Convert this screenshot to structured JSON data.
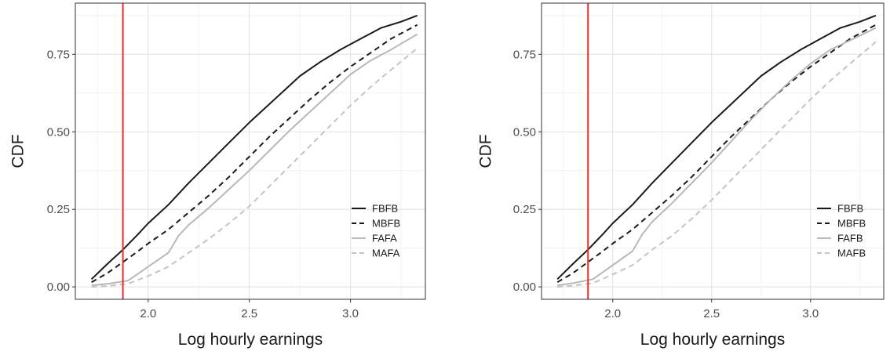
{
  "chart_data": [
    {
      "type": "line",
      "xlabel": "Log hourly earnings",
      "ylabel": "CDF",
      "xlim": [
        1.64,
        3.37
      ],
      "ylim": [
        -0.04,
        0.915
      ],
      "xticks": [
        2.0,
        2.5,
        3.0
      ],
      "xtick_labels": [
        "2.0",
        "2.5",
        "3.0"
      ],
      "yticks": [
        0.0,
        0.25,
        0.5,
        0.75
      ],
      "ytick_labels": [
        "0.00",
        "0.25",
        "0.50",
        "0.75"
      ],
      "grid": true,
      "legend_position": "bottom-right",
      "vline": {
        "x": 1.875,
        "color": "#e8302a"
      },
      "series": [
        {
          "name": "FBFB",
          "color": "#1a1a1a",
          "dash": "solid",
          "x": [
            1.72,
            1.8,
            1.875,
            1.95,
            2.0,
            2.1,
            2.2,
            2.3,
            2.4,
            2.5,
            2.6,
            2.7,
            2.75,
            2.85,
            2.95,
            3.05,
            3.15,
            3.25,
            3.33
          ],
          "y": [
            0.025,
            0.075,
            0.12,
            0.17,
            0.205,
            0.265,
            0.335,
            0.4,
            0.465,
            0.53,
            0.59,
            0.65,
            0.68,
            0.725,
            0.765,
            0.8,
            0.835,
            0.855,
            0.875
          ]
        },
        {
          "name": "MBFB",
          "color": "#1a1a1a",
          "dash": "dashed",
          "x": [
            1.72,
            1.8,
            1.875,
            1.95,
            2.0,
            2.1,
            2.2,
            2.3,
            2.4,
            2.5,
            2.6,
            2.7,
            2.8,
            2.9,
            3.0,
            3.1,
            3.2,
            3.33
          ],
          "y": [
            0.015,
            0.045,
            0.08,
            0.115,
            0.14,
            0.185,
            0.24,
            0.295,
            0.355,
            0.42,
            0.485,
            0.545,
            0.605,
            0.66,
            0.71,
            0.755,
            0.8,
            0.845
          ]
        },
        {
          "name": "FAFA",
          "color": "#b8b8b8",
          "dash": "solid",
          "x": [
            1.72,
            1.8,
            1.9,
            2.0,
            2.1,
            2.15,
            2.2,
            2.3,
            2.4,
            2.5,
            2.6,
            2.7,
            2.8,
            2.9,
            3.0,
            3.1,
            3.2,
            3.33
          ],
          "y": [
            0.005,
            0.01,
            0.02,
            0.065,
            0.11,
            0.165,
            0.2,
            0.255,
            0.315,
            0.375,
            0.44,
            0.505,
            0.565,
            0.625,
            0.685,
            0.73,
            0.765,
            0.815
          ]
        },
        {
          "name": "MAFA",
          "color": "#c4c4c4",
          "dash": "dashed",
          "x": [
            1.72,
            1.8,
            1.9,
            2.0,
            2.1,
            2.2,
            2.3,
            2.4,
            2.5,
            2.6,
            2.7,
            2.8,
            2.9,
            3.0,
            3.1,
            3.2,
            3.33
          ],
          "y": [
            0.0,
            0.003,
            0.01,
            0.035,
            0.065,
            0.11,
            0.155,
            0.205,
            0.26,
            0.325,
            0.39,
            0.455,
            0.52,
            0.585,
            0.645,
            0.7,
            0.77
          ]
        }
      ]
    },
    {
      "type": "line",
      "xlabel": "Log hourly earnings",
      "ylabel": "CDF",
      "xlim": [
        1.64,
        3.37
      ],
      "ylim": [
        -0.04,
        0.915
      ],
      "xticks": [
        2.0,
        2.5,
        3.0
      ],
      "xtick_labels": [
        "2.0",
        "2.5",
        "3.0"
      ],
      "yticks": [
        0.0,
        0.25,
        0.5,
        0.75
      ],
      "ytick_labels": [
        "0.00",
        "0.25",
        "0.50",
        "0.75"
      ],
      "grid": true,
      "legend_position": "bottom-right",
      "vline": {
        "x": 1.875,
        "color": "#e8302a"
      },
      "series": [
        {
          "name": "FBFB",
          "color": "#1a1a1a",
          "dash": "solid",
          "x": [
            1.72,
            1.8,
            1.875,
            1.95,
            2.0,
            2.1,
            2.2,
            2.3,
            2.4,
            2.5,
            2.6,
            2.7,
            2.75,
            2.85,
            2.95,
            3.05,
            3.15,
            3.25,
            3.33
          ],
          "y": [
            0.025,
            0.075,
            0.12,
            0.17,
            0.205,
            0.265,
            0.335,
            0.4,
            0.465,
            0.53,
            0.59,
            0.65,
            0.68,
            0.725,
            0.765,
            0.8,
            0.835,
            0.855,
            0.875
          ]
        },
        {
          "name": "MBFB",
          "color": "#1a1a1a",
          "dash": "dashed",
          "x": [
            1.72,
            1.8,
            1.875,
            1.95,
            2.0,
            2.1,
            2.2,
            2.3,
            2.4,
            2.5,
            2.6,
            2.7,
            2.8,
            2.9,
            3.0,
            3.1,
            3.2,
            3.33
          ],
          "y": [
            0.015,
            0.045,
            0.08,
            0.115,
            0.14,
            0.185,
            0.24,
            0.295,
            0.355,
            0.42,
            0.485,
            0.545,
            0.605,
            0.66,
            0.71,
            0.755,
            0.8,
            0.845
          ]
        },
        {
          "name": "FAFB",
          "color": "#b8b8b8",
          "dash": "solid",
          "x": [
            1.72,
            1.8,
            1.9,
            2.0,
            2.1,
            2.15,
            2.2,
            2.3,
            2.4,
            2.5,
            2.6,
            2.7,
            2.8,
            2.9,
            3.0,
            3.1,
            3.2,
            3.33
          ],
          "y": [
            0.005,
            0.012,
            0.025,
            0.07,
            0.115,
            0.17,
            0.21,
            0.27,
            0.335,
            0.4,
            0.47,
            0.54,
            0.605,
            0.665,
            0.72,
            0.765,
            0.795,
            0.835
          ]
        },
        {
          "name": "MAFB",
          "color": "#c4c4c4",
          "dash": "dashed",
          "x": [
            1.72,
            1.8,
            1.9,
            2.0,
            2.1,
            2.2,
            2.3,
            2.4,
            2.5,
            2.6,
            2.7,
            2.8,
            2.9,
            3.0,
            3.1,
            3.2,
            3.33
          ],
          "y": [
            0.0,
            0.004,
            0.012,
            0.04,
            0.07,
            0.12,
            0.165,
            0.22,
            0.28,
            0.345,
            0.41,
            0.475,
            0.54,
            0.605,
            0.665,
            0.72,
            0.79
          ]
        }
      ]
    }
  ]
}
